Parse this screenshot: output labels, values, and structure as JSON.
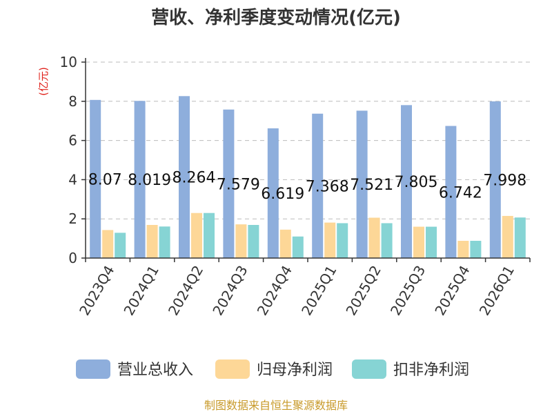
{
  "colors": {
    "revenue": "#8eaedc",
    "parent_profit": "#fdd797",
    "non_recurring_profit": "#86d4d4",
    "axis": "#333333",
    "grid": "#bbbbbb",
    "unit": "#e0201a",
    "source": "#c89a2a"
  },
  "chart_data": {
    "type": "bar",
    "title": "营收、净利季度变动情况(亿元)",
    "ylabel": "(亿元)",
    "xlabel": "",
    "ylim": [
      0,
      10
    ],
    "yticks": [
      0,
      2,
      4,
      6,
      8,
      10
    ],
    "grid": true,
    "legend_position": "bottom",
    "categories": [
      "2023Q4",
      "2024Q1",
      "2024Q2",
      "2024Q3",
      "2024Q4",
      "2025Q1",
      "2025Q2",
      "2025Q3",
      "2025Q4",
      "2026Q1"
    ],
    "series": [
      {
        "name": "营业总收入",
        "color_key": "revenue",
        "values": [
          8.07,
          8.019,
          8.264,
          7.579,
          6.619,
          7.368,
          7.521,
          7.805,
          6.742,
          7.998
        ],
        "labels": [
          "8.07",
          "8.019",
          "8.264",
          "7.579",
          "6.619",
          "7.368",
          "7.521",
          "7.805",
          "6.742",
          "7.998"
        ]
      },
      {
        "name": "归母净利润",
        "color_key": "parent_profit",
        "values": [
          1.43,
          1.69,
          2.3,
          1.72,
          1.45,
          1.81,
          2.06,
          1.6,
          0.88,
          2.15
        ]
      },
      {
        "name": "扣非净利润",
        "color_key": "non_recurring_profit",
        "values": [
          1.29,
          1.61,
          2.3,
          1.69,
          1.1,
          1.78,
          1.78,
          1.6,
          0.88,
          2.07
        ]
      }
    ],
    "source": "制图数据来自恒生聚源数据库"
  }
}
